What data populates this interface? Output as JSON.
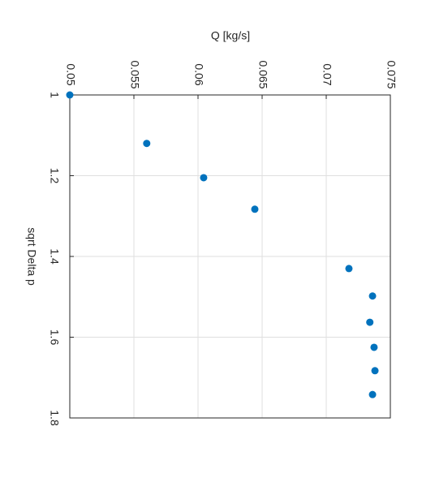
{
  "chart_data": {
    "type": "scatter",
    "x_label": "sqrt Delta p",
    "y_label": "Q [kg/s]",
    "color": "#0072bd",
    "grid": true,
    "x": [
      1.0,
      1.12,
      1.205,
      1.283,
      1.43,
      1.498,
      1.563,
      1.625,
      1.683,
      1.742
    ],
    "values": [
      0.05,
      0.056,
      0.06044,
      0.06443,
      0.07177,
      0.07361,
      0.0734,
      0.07373,
      0.0738,
      0.07361
    ],
    "xlim": [
      1,
      1.8
    ],
    "xticks": [
      1,
      1.2,
      1.4,
      1.6,
      1.8
    ],
    "ylim": [
      0.05,
      0.075
    ],
    "yticks": [
      0.05,
      0.055,
      0.06,
      0.065,
      0.07,
      0.075
    ]
  }
}
